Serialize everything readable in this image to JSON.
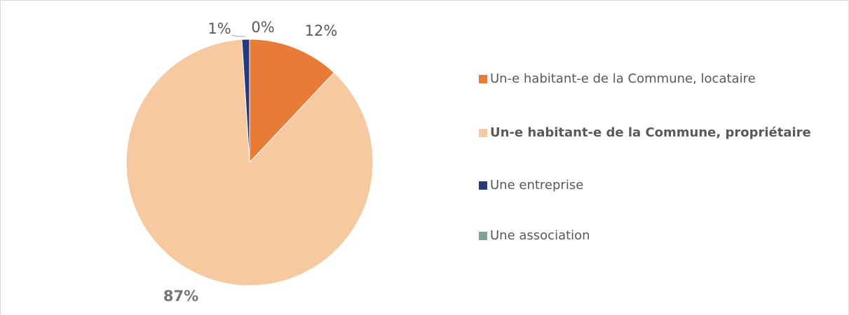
{
  "chart_data": {
    "type": "pie",
    "categories": [
      "Un-e habitant-e de la Commune, locataire",
      "Un-e habitant-e de la Commune, propriétaire",
      "Une entreprise",
      "Une association"
    ],
    "values": [
      12,
      87,
      1,
      0
    ],
    "value_labels": [
      "12%",
      "87%",
      "1%",
      "0%"
    ],
    "colors": [
      "#e87c36",
      "#f6c9a0",
      "#253a7a",
      "#7ba39a"
    ],
    "legend": "right"
  }
}
